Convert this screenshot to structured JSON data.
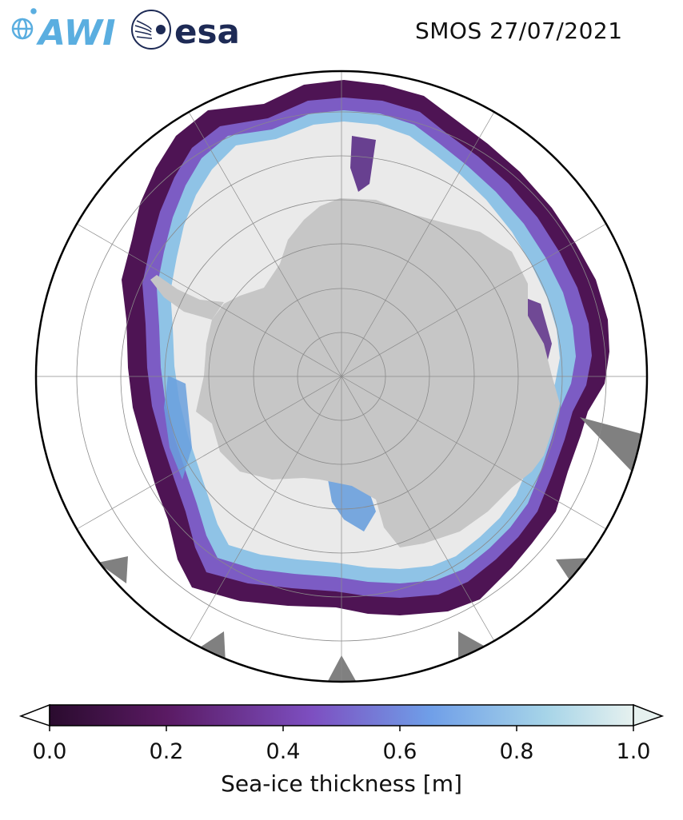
{
  "header": {
    "awi_logo_text": "AWI",
    "esa_logo_text": "esa",
    "title": "SMOS 27/07/2021"
  },
  "map": {
    "projection": "south-polar-stereographic",
    "colors": {
      "land": "#c6c6c6",
      "ice_thick": "#eaeaea",
      "ocean": "#ffffff",
      "no_data_wedges": "#808080",
      "graticule": "#8a8a8a"
    }
  },
  "colorbar": {
    "label": "Sea-ice thickness [m]",
    "colormap": "dense-purple",
    "min": 0.0,
    "max": 1.0,
    "extend": "both",
    "ticks": [
      "0.0",
      "0.2",
      "0.4",
      "0.6",
      "0.8",
      "1.0"
    ],
    "stops": [
      "#2a0b2e",
      "#5a1a63",
      "#7d4fc1",
      "#6f9ee8",
      "#a6d4e8",
      "#e6f1ef"
    ]
  }
}
